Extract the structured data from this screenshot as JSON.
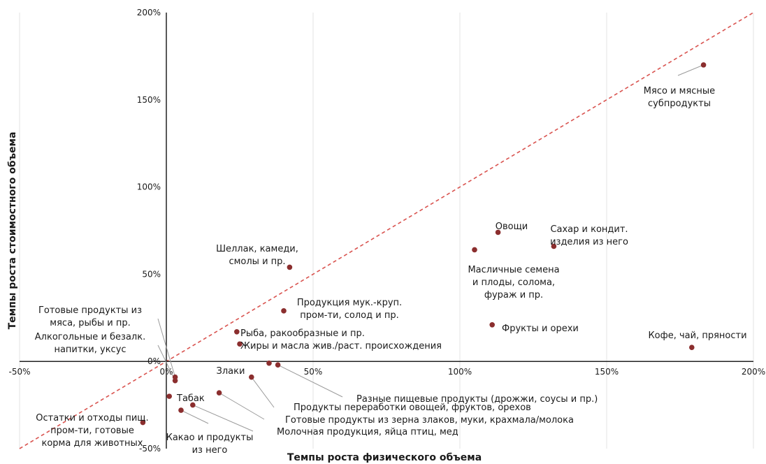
{
  "chart_data": {
    "type": "scatter",
    "xlabel": "Темпы роста физического объема",
    "ylabel": "Темпы роста стоимостного объема",
    "xlim": [
      -50,
      200
    ],
    "ylim": [
      -50,
      200
    ],
    "x_ticks": [
      "-50%",
      "0%",
      "50%",
      "100%",
      "150%",
      "200%"
    ],
    "y_ticks": [
      "-50%",
      "0%",
      "50%",
      "100%",
      "150%",
      "200%"
    ],
    "grid": "vertical",
    "reference_line": "y = x (dashed)",
    "marker_color": "#8b2e2e",
    "diagonal_color": "#d9534f",
    "points": [
      {
        "name": "Мясо и мясные субпродукты",
        "lines": [
          "Мясо и мясные",
          "субпродукты"
        ],
        "x": 183,
        "y": 170
      },
      {
        "name": "Овощи",
        "lines": [
          "Овощи"
        ],
        "x": 113,
        "y": 74
      },
      {
        "name": "Сахар и кондит. изделия из него",
        "lines": [
          "Сахар и кондит.",
          "изделия из него"
        ],
        "x": 132,
        "y": 66
      },
      {
        "name": "Масличные семена и плоды, солома, фураж и пр.",
        "lines": [
          "Масличные семена",
          "и плоды, солома,",
          "фураж и пр."
        ],
        "x": 105,
        "y": 64
      },
      {
        "name": "Фрукты и орехи",
        "lines": [
          "Фрукты и орехи"
        ],
        "x": 111,
        "y": 21
      },
      {
        "name": "Кофе, чай, пряности",
        "lines": [
          "Кофе, чай, пряности"
        ],
        "x": 179,
        "y": 8
      },
      {
        "name": "Шеллак, камеди, смолы и пр.",
        "lines": [
          "Шеллак, камеди,",
          "смолы и пр."
        ],
        "x": 42,
        "y": 54
      },
      {
        "name": "Продукция мук.-круп. пром-ти, солод и пр.",
        "lines": [
          "Продукция мук.-круп.",
          "пром-ти, солод и пр."
        ],
        "x": 40,
        "y": 29
      },
      {
        "name": "Рыба, ракообразные и пр.",
        "lines": [
          "Рыба, ракообразные и пр."
        ],
        "x": 24,
        "y": 17
      },
      {
        "name": "Жиры и масла жив./раст. происхождения",
        "lines": [
          "Жиры и масла жив./раст. происхождения"
        ],
        "x": 25,
        "y": 10
      },
      {
        "name": "Злаки",
        "lines": [
          "Злаки"
        ],
        "x": 35,
        "y": -1
      },
      {
        "name": "Разные пищевые продукты (дрожжи, соусы и пр.)",
        "lines": [
          "Разные пищевые продукты (дрожжи, соусы и пр.)"
        ],
        "x": 38,
        "y": -2
      },
      {
        "name": "Продукты переработки овощей, фруктов, орехов",
        "lines": [
          "Продукты переработки овощей, фруктов, орехов"
        ],
        "x": 29,
        "y": -9
      },
      {
        "name": "Готовые продукты из зерна злаков, муки, крахмала/молока",
        "lines": [
          "Готовые продукты из зерна злаков, муки, крахмала/молока"
        ],
        "x": 18,
        "y": -18
      },
      {
        "name": "Молочная продукция, яйца птиц, мед",
        "lines": [
          "Молочная продукция, яйца птиц, мед"
        ],
        "x": 9,
        "y": -25
      },
      {
        "name": "Какао и продукты из него",
        "lines": [
          "Какао и продукты",
          "из него"
        ],
        "x": 5,
        "y": -28
      },
      {
        "name": "Табак",
        "lines": [
          "Табак"
        ],
        "x": 1,
        "y": -20
      },
      {
        "name": "Готовые продукты из мяса, рыбы и пр.",
        "lines": [
          "Готовые продукты из",
          "мяса, рыбы и пр."
        ],
        "x": 3,
        "y": -9
      },
      {
        "name": "Алкогольные и безалк. напитки, уксус",
        "lines": [
          "Алкогольные и безалк.",
          "напитки, уксус"
        ],
        "x": 3,
        "y": -11
      },
      {
        "name": "Остатки и отходы пищ. пром-ти, готовые корма для животных",
        "lines": [
          "Остатки и отходы пищ.",
          "пром-ти, готовые",
          "корма для животных"
        ],
        "x": -8,
        "y": -35
      }
    ]
  }
}
